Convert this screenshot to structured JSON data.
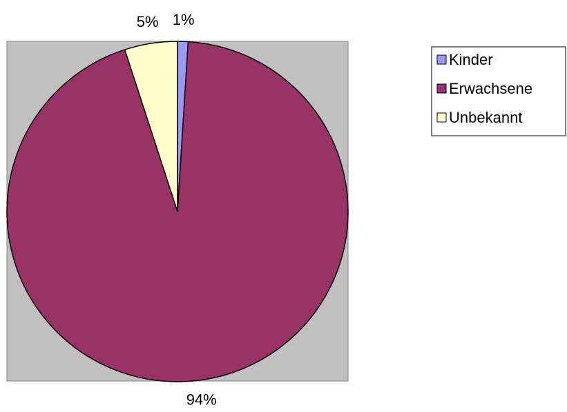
{
  "chart_data": {
    "type": "pie",
    "categories": [
      "Kinder",
      "Erwachsene",
      "Unbekannt"
    ],
    "values": [
      1,
      94,
      5
    ],
    "value_labels": [
      "1%",
      "94%",
      "5%"
    ],
    "colors": [
      "#9999ff",
      "#993366",
      "#ffffcc"
    ],
    "legend": "right"
  }
}
